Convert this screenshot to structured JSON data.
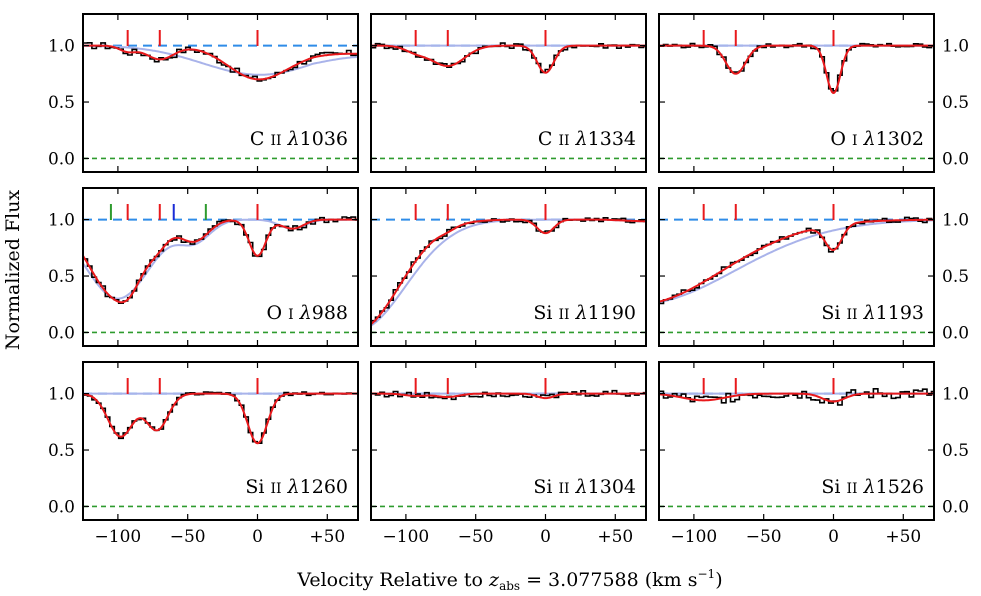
{
  "figure": {
    "ylabel": "Normalized Flux",
    "xlabel_prefix": "Velocity Relative to ",
    "xlabel_var": "z",
    "xlabel_sub": "abs",
    "xlabel_eq": " = 3.077588 (km s",
    "xlabel_sup": "−1",
    "xlabel_close": ")"
  },
  "colors": {
    "data": "#000000",
    "model": "#e8191c",
    "components": "#a9b3ea",
    "continuum": "#2f8ce8",
    "zero": "#2e9b2e",
    "tick_red": "#e8191c",
    "tick_green": "#2e9b2e",
    "tick_blue": "#1a2bd6"
  },
  "chart_data": {
    "type": "line",
    "xlim": [
      -125,
      72
    ],
    "ylim": [
      -0.12,
      1.28
    ],
    "xticks": [
      -100,
      -50,
      0,
      50
    ],
    "xtick_labels": [
      "−100",
      "−50",
      "0",
      "+50"
    ],
    "yticks": [
      0.0,
      0.5,
      1.0
    ],
    "ytick_labels": [
      "0.0",
      "0.5",
      "1.0"
    ],
    "continuum": 1.0,
    "zero_level": 0.0,
    "component_velocities": [
      -93,
      -70,
      0
    ],
    "panels": [
      {
        "ion": "C",
        "stage": "II",
        "wave": "1036",
        "absorbers": [
          {
            "v": -93,
            "d": 0.05,
            "w": 6
          },
          {
            "v": -70,
            "d": 0.12,
            "w": 10
          },
          {
            "v": -2,
            "d": 0.22,
            "w": 20
          }
        ],
        "blend": [
          {
            "v": 20,
            "d": 0.1,
            "w": 30
          }
        ],
        "tail": -0.25,
        "noise": 0.03,
        "blue_blend": 0.18
      },
      {
        "ion": "C",
        "stage": "II",
        "wave": "1334",
        "absorbers": [
          {
            "v": -93,
            "d": 0.05,
            "w": 8
          },
          {
            "v": -70,
            "d": 0.18,
            "w": 12
          },
          {
            "v": 0,
            "d": 0.24,
            "w": 6
          }
        ],
        "blend": [],
        "tail": 0,
        "noise": 0.025,
        "blue_blend": 0
      },
      {
        "ion": "O",
        "stage": "I",
        "wave": "1302",
        "absorbers": [
          {
            "v": -70,
            "d": 0.25,
            "w": 7
          },
          {
            "v": 0,
            "d": 0.42,
            "w": 5
          }
        ],
        "blend": [],
        "tail": 0,
        "noise": 0.02,
        "blue_blend": 0
      },
      {
        "ion": "O",
        "stage": "I",
        "wave": "988",
        "absorbers": [
          {
            "v": -93,
            "d": 0.05,
            "w": 6
          },
          {
            "v": -70,
            "d": 0.05,
            "w": 6
          },
          {
            "v": 0,
            "d": 0.32,
            "w": 6
          }
        ],
        "blend": [
          {
            "v": -100,
            "d": 0.7,
            "w": 20
          },
          {
            "v": -45,
            "d": 0.18,
            "w": 10
          },
          {
            "v": 25,
            "d": 0.08,
            "w": 8
          }
        ],
        "tail": 0,
        "noise": 0.025,
        "blue_blend": 0,
        "extra_ticks": [
          {
            "v": -105,
            "color": "green"
          },
          {
            "v": -60,
            "color": "blue"
          },
          {
            "v": -37,
            "color": "green"
          }
        ]
      },
      {
        "ion": "Si",
        "stage": "II",
        "wave": "1190",
        "absorbers": [
          {
            "v": -70,
            "d": 0.02,
            "w": 6
          },
          {
            "v": 0,
            "d": 0.12,
            "w": 6
          }
        ],
        "blend": [
          {
            "v": -135,
            "d": 0.98,
            "w": 30
          }
        ],
        "tail": -0.08,
        "noise": 0.02,
        "blue_blend": 0
      },
      {
        "ion": "Si",
        "stage": "II",
        "wave": "1193",
        "absorbers": [
          {
            "v": 0,
            "d": 0.22,
            "w": 6
          }
        ],
        "blend": [
          {
            "v": -140,
            "d": 0.75,
            "w": 60
          }
        ],
        "tail": 0,
        "noise": 0.025,
        "blue_blend": 0
      },
      {
        "ion": "Si",
        "stage": "II",
        "wave": "1260",
        "absorbers": [
          {
            "v": -98,
            "d": 0.38,
            "w": 9
          },
          {
            "v": -72,
            "d": 0.32,
            "w": 8
          },
          {
            "v": 0,
            "d": 0.44,
            "w": 7
          }
        ],
        "blend": [],
        "tail": 0,
        "noise": 0.015,
        "blue_blend": 0
      },
      {
        "ion": "Si",
        "stage": "II",
        "wave": "1304",
        "absorbers": [
          {
            "v": -93,
            "d": 0.02,
            "w": 8
          },
          {
            "v": -70,
            "d": 0.03,
            "w": 8
          },
          {
            "v": 0,
            "d": 0.04,
            "w": 6
          }
        ],
        "blend": [],
        "tail": 0,
        "noise": 0.03,
        "blue_blend": 0
      },
      {
        "ion": "Si",
        "stage": "II",
        "wave": "1526",
        "absorbers": [
          {
            "v": -93,
            "d": 0.06,
            "w": 15
          },
          {
            "v": 0,
            "d": 0.07,
            "w": 8
          }
        ],
        "blend": [],
        "tail": 0,
        "noise": 0.05,
        "blue_blend": 0
      }
    ]
  }
}
